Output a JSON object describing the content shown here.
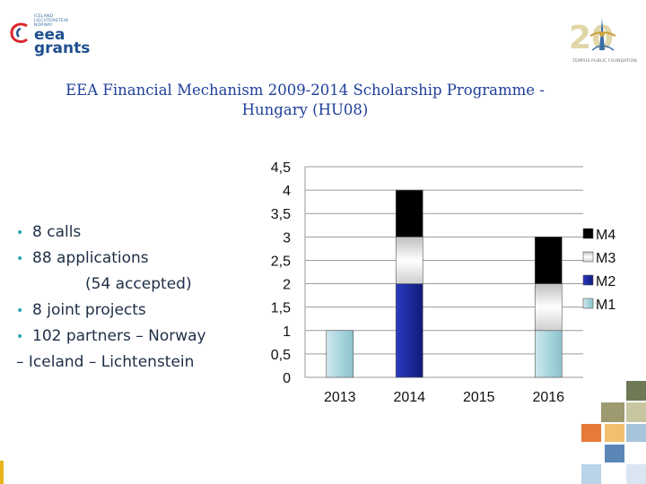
{
  "logo_left": {
    "countries": [
      "ICELAND",
      "LIECHTENSTEIN",
      "NORWAY"
    ],
    "brand_lines": [
      "eea",
      "grants"
    ]
  },
  "logo_right": {
    "caption": "TEMPUS PUBLIC FOUNDATION",
    "colors": {
      "gold": "#c8a13c",
      "blue": "#3a6ea8"
    }
  },
  "title": {
    "line1": "EEA Financial Mechanism 2009-2014 Scholarship Programme -",
    "line2": "Hungary (HU08)"
  },
  "bullets": {
    "b1": "8 calls",
    "b2": "88 applications",
    "b2_cont": "(54 accepted)",
    "b3": "8 joint projects",
    "b4": "102 partners – Norway",
    "b4_cont": "– Iceland – Lichtenstein"
  },
  "chart_data": {
    "type": "bar",
    "stacked": true,
    "categories": [
      "2013",
      "2014",
      "2015",
      "2016"
    ],
    "series": [
      {
        "name": "M1",
        "values": [
          1,
          0,
          0,
          1
        ],
        "color": "#a9d6de"
      },
      {
        "name": "M2",
        "values": [
          0,
          2,
          0,
          0
        ],
        "color": "#1c2a9c"
      },
      {
        "name": "M3",
        "values": [
          0,
          1,
          0,
          1
        ],
        "color": "#dcdcdc"
      },
      {
        "name": "M4",
        "values": [
          0,
          1,
          0,
          1
        ],
        "color": "#000000"
      }
    ],
    "legend_order": [
      "M4",
      "M3",
      "M2",
      "M1"
    ],
    "ylim": [
      0,
      4.5
    ],
    "yticks": [
      "0",
      "0,5",
      "1",
      "1,5",
      "2",
      "2,5",
      "3",
      "3,5",
      "4",
      "4,5"
    ],
    "grid": true,
    "legend_position": "right"
  }
}
